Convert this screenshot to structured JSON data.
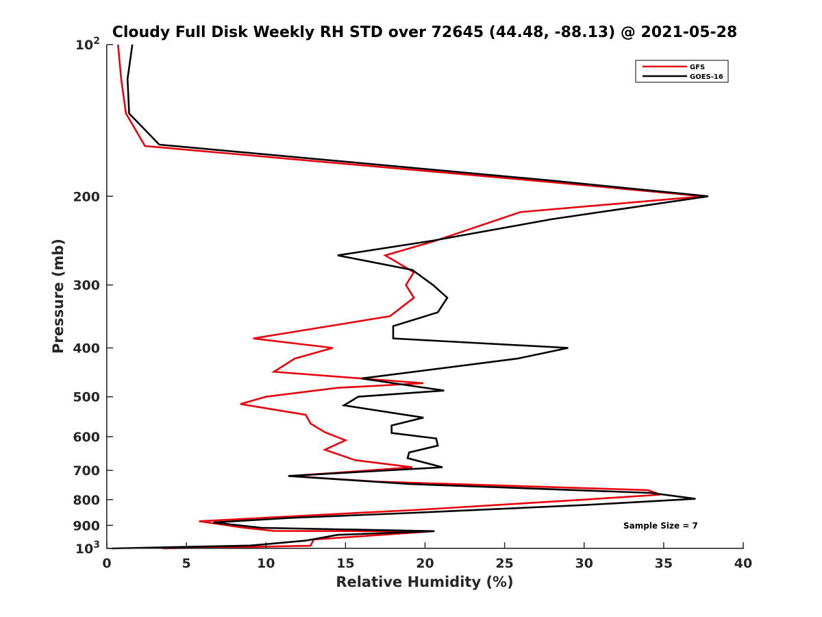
{
  "chart_data": {
    "type": "line",
    "title": "Cloudy Full Disk Weekly RH STD over 72645 (44.48, -88.13) @ 2021-05-28",
    "xlabel": "Relative Humidity (%)",
    "ylabel": "Pressure (mb)",
    "xlim": [
      0,
      40
    ],
    "ylim": [
      100,
      1000
    ],
    "y_scale": "log",
    "y_reversed": true,
    "grid": false,
    "legend_position": "top-right",
    "annotation": "Sample Size = 7",
    "x_ticks": [
      0,
      5,
      10,
      15,
      20,
      25,
      30,
      35,
      40
    ],
    "x_tick_labels": [
      "0",
      "5",
      "10",
      "15",
      "20",
      "25",
      "30",
      "35",
      "40"
    ],
    "y_ticks": [
      {
        "value": 100,
        "label": "10",
        "sup": "2"
      },
      {
        "value": 200,
        "label": "200",
        "sup": ""
      },
      {
        "value": 300,
        "label": "300",
        "sup": ""
      },
      {
        "value": 400,
        "label": "400",
        "sup": ""
      },
      {
        "value": 500,
        "label": "500",
        "sup": ""
      },
      {
        "value": 600,
        "label": "600",
        "sup": ""
      },
      {
        "value": 700,
        "label": "700",
        "sup": ""
      },
      {
        "value": 800,
        "label": "800",
        "sup": ""
      },
      {
        "value": 900,
        "label": "900",
        "sup": ""
      },
      {
        "value": 1000,
        "label": "10",
        "sup": "3"
      }
    ],
    "series": [
      {
        "name": "GFS",
        "color": "#e8000b",
        "points": [
          [
            0.7,
            100
          ],
          [
            0.9,
            117
          ],
          [
            1.2,
            137
          ],
          [
            2.4,
            159
          ],
          [
            27.5,
            187
          ],
          [
            37.5,
            200
          ],
          [
            26.0,
            215
          ],
          [
            20.5,
            246
          ],
          [
            17.5,
            262
          ],
          [
            19.3,
            283
          ],
          [
            18.8,
            300
          ],
          [
            19.3,
            318
          ],
          [
            17.8,
            346
          ],
          [
            9.2,
            383
          ],
          [
            14.2,
            400
          ],
          [
            11.8,
            420
          ],
          [
            10.5,
            446
          ],
          [
            19.9,
            470
          ],
          [
            14.5,
            480
          ],
          [
            10.0,
            500
          ],
          [
            8.4,
            517
          ],
          [
            12.5,
            543
          ],
          [
            12.8,
            565
          ],
          [
            13.7,
            588
          ],
          [
            15.0,
            610
          ],
          [
            13.7,
            637
          ],
          [
            15.6,
            668
          ],
          [
            19.2,
            690
          ],
          [
            14.3,
            708
          ],
          [
            11.5,
            718
          ],
          [
            17.0,
            737
          ],
          [
            34.0,
            766
          ],
          [
            34.8,
            782
          ],
          [
            30.0,
            800
          ],
          [
            19.3,
            839
          ],
          [
            15.8,
            850
          ],
          [
            5.8,
            883
          ],
          [
            8.5,
            909
          ],
          [
            10.5,
            923
          ],
          [
            20.4,
            925
          ],
          [
            13.0,
            960
          ],
          [
            12.8,
            988
          ],
          [
            3.5,
            1000
          ]
        ]
      },
      {
        "name": "GOES-16",
        "color": "#000000",
        "points": [
          [
            1.6,
            100
          ],
          [
            1.3,
            117
          ],
          [
            1.4,
            137
          ],
          [
            3.3,
            158
          ],
          [
            27.8,
            186
          ],
          [
            37.8,
            200
          ],
          [
            28.0,
            222
          ],
          [
            20.5,
            245
          ],
          [
            14.5,
            262
          ],
          [
            19.2,
            280
          ],
          [
            20.5,
            300
          ],
          [
            21.4,
            318
          ],
          [
            20.8,
            340
          ],
          [
            18.0,
            362
          ],
          [
            18.0,
            383
          ],
          [
            29.0,
            400
          ],
          [
            25.8,
            420
          ],
          [
            16.0,
            460
          ],
          [
            21.2,
            486
          ],
          [
            15.8,
            500
          ],
          [
            14.9,
            520
          ],
          [
            19.9,
            550
          ],
          [
            17.9,
            570
          ],
          [
            17.9,
            590
          ],
          [
            20.7,
            605
          ],
          [
            20.8,
            625
          ],
          [
            19.0,
            645
          ],
          [
            18.9,
            662
          ],
          [
            21.1,
            690
          ],
          [
            11.4,
            718
          ],
          [
            19.0,
            745
          ],
          [
            34.2,
            776
          ],
          [
            37.0,
            797
          ],
          [
            30.0,
            820
          ],
          [
            18.8,
            851
          ],
          [
            11.5,
            870
          ],
          [
            6.7,
            888
          ],
          [
            9.7,
            910
          ],
          [
            20.6,
            924
          ],
          [
            14.5,
            940
          ],
          [
            12.5,
            965
          ],
          [
            9.0,
            987
          ],
          [
            0.3,
            1000
          ]
        ]
      }
    ]
  }
}
